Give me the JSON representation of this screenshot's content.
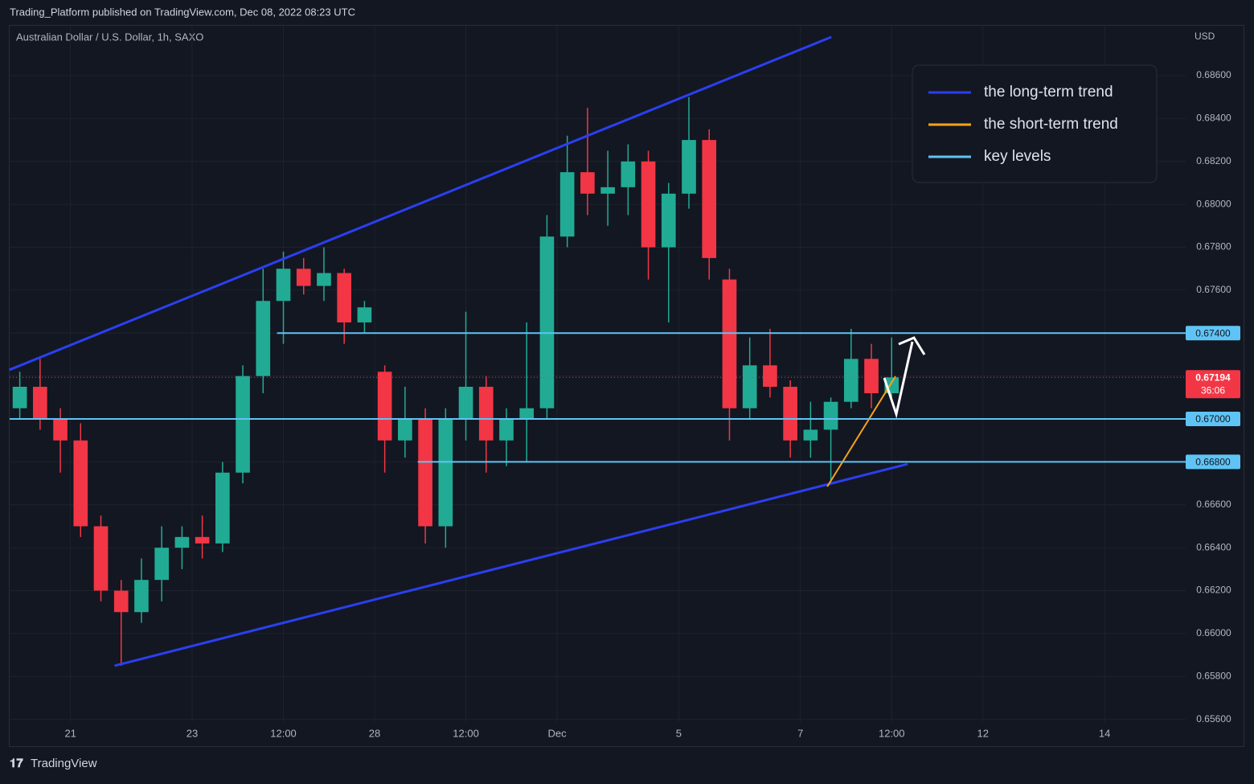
{
  "header": {
    "published": "Trading_Platform published on TradingView.com, Dec 08, 2022 08:23 UTC",
    "footer": "TradingView"
  },
  "chart_data": {
    "type": "candlestick",
    "title": "Australian Dollar / U.S. Dollar, 1h, SAXO",
    "currency": "USD",
    "candle_hours": 8,
    "x": [
      -24,
      -16,
      -8,
      0,
      8,
      16,
      24,
      32,
      40,
      48,
      56,
      64,
      72,
      80,
      88,
      96,
      104,
      112,
      120,
      128,
      136,
      144,
      152,
      160,
      168,
      176,
      184,
      192,
      200,
      208,
      216,
      224,
      232,
      240,
      248,
      256,
      264,
      272,
      280,
      288,
      296,
      304,
      312,
      320
    ],
    "open": [
      0.6705,
      0.6715,
      0.67,
      0.669,
      0.665,
      0.662,
      0.661,
      0.6625,
      0.664,
      0.6645,
      0.6642,
      0.6675,
      0.672,
      0.6755,
      0.677,
      0.6762,
      0.6768,
      0.6745,
      0.6722,
      0.669,
      0.67,
      0.665,
      0.67,
      0.6715,
      0.669,
      0.67,
      0.6705,
      0.6785,
      0.6815,
      0.6805,
      0.6808,
      0.682,
      0.678,
      0.6805,
      0.683,
      0.6765,
      0.6705,
      0.6725,
      0.6715,
      0.669,
      0.6695,
      0.6708,
      0.6728,
      0.6712
    ],
    "high": [
      0.6722,
      0.6728,
      0.6705,
      0.6698,
      0.6655,
      0.6625,
      0.6635,
      0.665,
      0.665,
      0.6655,
      0.668,
      0.6725,
      0.677,
      0.6778,
      0.6775,
      0.678,
      0.677,
      0.6755,
      0.6725,
      0.6715,
      0.6705,
      0.6705,
      0.675,
      0.672,
      0.6705,
      0.6745,
      0.6795,
      0.6832,
      0.6845,
      0.6825,
      0.6828,
      0.6825,
      0.681,
      0.685,
      0.6835,
      0.677,
      0.6738,
      0.6742,
      0.6718,
      0.6708,
      0.671,
      0.6742,
      0.6735,
      0.6738
    ],
    "low": [
      0.67,
      0.6695,
      0.6675,
      0.6645,
      0.6615,
      0.6585,
      0.6605,
      0.6615,
      0.663,
      0.6635,
      0.6638,
      0.667,
      0.6712,
      0.6735,
      0.6758,
      0.6755,
      0.6735,
      0.674,
      0.6675,
      0.6682,
      0.6642,
      0.664,
      0.669,
      0.6675,
      0.6678,
      0.668,
      0.67,
      0.678,
      0.6795,
      0.679,
      0.6795,
      0.6765,
      0.6745,
      0.6798,
      0.6765,
      0.669,
      0.67,
      0.671,
      0.6682,
      0.6682,
      0.667,
      0.6705,
      0.6705,
      0.671
    ],
    "close": [
      0.6715,
      0.67,
      0.669,
      0.665,
      0.662,
      0.661,
      0.6625,
      0.664,
      0.6645,
      0.6642,
      0.6675,
      0.672,
      0.6755,
      0.677,
      0.6762,
      0.6768,
      0.6745,
      0.6752,
      0.669,
      0.67,
      0.665,
      0.67,
      0.6715,
      0.669,
      0.67,
      0.6705,
      0.6785,
      0.6815,
      0.6805,
      0.6808,
      0.682,
      0.678,
      0.6805,
      0.683,
      0.6775,
      0.6705,
      0.6725,
      0.6715,
      0.669,
      0.6695,
      0.6708,
      0.6728,
      0.6712,
      0.67194
    ],
    "up_color": "#22ab94",
    "down_color": "#f23645",
    "xlim": [
      -24,
      440
    ],
    "xticks": [
      {
        "value": 0,
        "label": "21"
      },
      {
        "value": 48,
        "label": "23"
      },
      {
        "value": 84,
        "label": "12:00"
      },
      {
        "value": 120,
        "label": "28"
      },
      {
        "value": 156,
        "label": "12:00"
      },
      {
        "value": 192,
        "label": "Dec"
      },
      {
        "value": 240,
        "label": "5"
      },
      {
        "value": 288,
        "label": "7"
      },
      {
        "value": 324,
        "label": "12:00"
      },
      {
        "value": 360,
        "label": "12"
      },
      {
        "value": 408,
        "label": "14"
      }
    ],
    "ylim": [
      0.6558,
      0.6884
    ],
    "yticks": [
      {
        "value": 0.656,
        "label": "0.65600"
      },
      {
        "value": 0.658,
        "label": "0.65800"
      },
      {
        "value": 0.66,
        "label": "0.66000"
      },
      {
        "value": 0.662,
        "label": "0.66200"
      },
      {
        "value": 0.664,
        "label": "0.66400"
      },
      {
        "value": 0.666,
        "label": "0.66600"
      },
      {
        "value": 0.668,
        "label": "0.66800"
      },
      {
        "value": 0.67,
        "label": "0.67000"
      },
      {
        "value": 0.672,
        "label": "0.67200"
      },
      {
        "value": 0.674,
        "label": "0.67400"
      },
      {
        "value": 0.676,
        "label": "0.67600"
      },
      {
        "value": 0.678,
        "label": "0.67800"
      },
      {
        "value": 0.68,
        "label": "0.68000"
      },
      {
        "value": 0.682,
        "label": "0.68200"
      },
      {
        "value": 0.684,
        "label": "0.68400"
      },
      {
        "value": 0.686,
        "label": "0.68600"
      }
    ],
    "grid": true,
    "last_price": 0.67194,
    "countdown": "36:06",
    "last_price_color": "#f23645",
    "overlays": [
      {
        "name": "the long-term trend",
        "color": "#2b3ff0",
        "lines": [
          {
            "x": [
              -24.1,
              300.2
            ],
            "y": [
              0.67229,
              0.6878
            ]
          },
          {
            "x": [
              17.4,
              330.3
            ],
            "y": [
              0.6585,
              0.6679
            ]
          }
        ]
      },
      {
        "name": "the short-term trend",
        "color": "#f7a21b",
        "lines": [
          {
            "x": [
              298.6,
              325.5
            ],
            "y": [
              0.66685,
              0.67199
            ]
          }
        ]
      },
      {
        "name": "key levels",
        "color": "#5fc4f5",
        "levels": [
          {
            "from": 81.5,
            "value": 0.674,
            "label": "0.67400"
          },
          {
            "from": -24,
            "value": 0.67,
            "label": "0.67000"
          },
          {
            "from": 137,
            "value": 0.668,
            "label": "0.66800"
          }
        ]
      }
    ]
  }
}
